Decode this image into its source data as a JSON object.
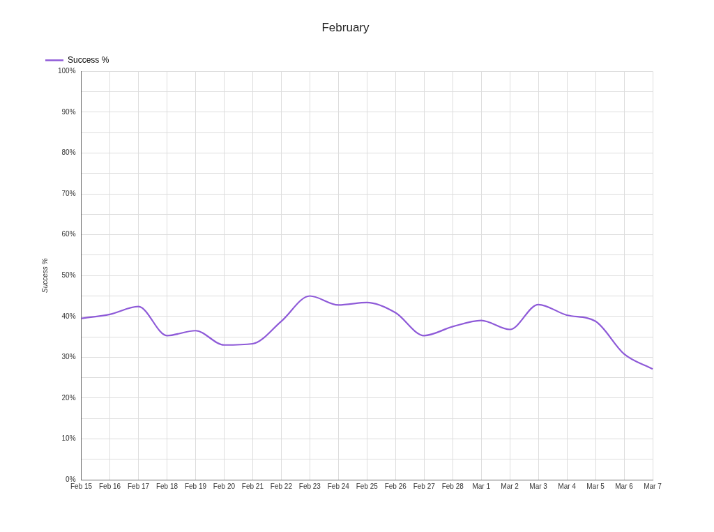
{
  "chart_data": {
    "type": "line",
    "title": "February",
    "ylabel": "Success %",
    "categories": [
      "Feb 15",
      "Feb 16",
      "Feb 17",
      "Feb 18",
      "Feb 19",
      "Feb 20",
      "Feb 21",
      "Feb 22",
      "Feb 23",
      "Feb 24",
      "Feb 25",
      "Feb 26",
      "Feb 27",
      "Feb 28",
      "Mar 1",
      "Mar 2",
      "Mar 3",
      "Mar 4",
      "Mar 5",
      "Mar 6",
      "Mar 7"
    ],
    "series": [
      {
        "name": "Success %",
        "color": "#8e5ad8",
        "values": [
          39.5,
          40.5,
          42.4,
          35.3,
          36.5,
          33.0,
          33.3,
          38.8,
          45.0,
          42.8,
          43.4,
          40.9,
          35.3,
          37.5,
          39.0,
          36.8,
          42.9,
          40.3,
          38.8,
          30.8,
          27.1
        ]
      }
    ],
    "ylim": [
      0,
      100
    ],
    "yticks": [
      {
        "value": 0,
        "label": "0%"
      },
      {
        "value": 5,
        "label": null
      },
      {
        "value": 10,
        "label": "10%"
      },
      {
        "value": 15,
        "label": null
      },
      {
        "value": 20,
        "label": "20%"
      },
      {
        "value": 25,
        "label": null
      },
      {
        "value": 30,
        "label": "30%"
      },
      {
        "value": 35,
        "label": null
      },
      {
        "value": 40,
        "label": "40%"
      },
      {
        "value": 45,
        "label": null
      },
      {
        "value": 50,
        "label": "50%"
      },
      {
        "value": 55,
        "label": null
      },
      {
        "value": 60,
        "label": "60%"
      },
      {
        "value": 65,
        "label": null
      },
      {
        "value": 70,
        "label": "70%"
      },
      {
        "value": 75,
        "label": null
      },
      {
        "value": 80,
        "label": "80%"
      },
      {
        "value": 85,
        "label": null
      },
      {
        "value": 90,
        "label": "90%"
      },
      {
        "value": 95,
        "label": null
      },
      {
        "value": 100,
        "label": "100%"
      }
    ],
    "grid": true,
    "legend": "top left",
    "marker": "none",
    "line_style": "solid"
  }
}
